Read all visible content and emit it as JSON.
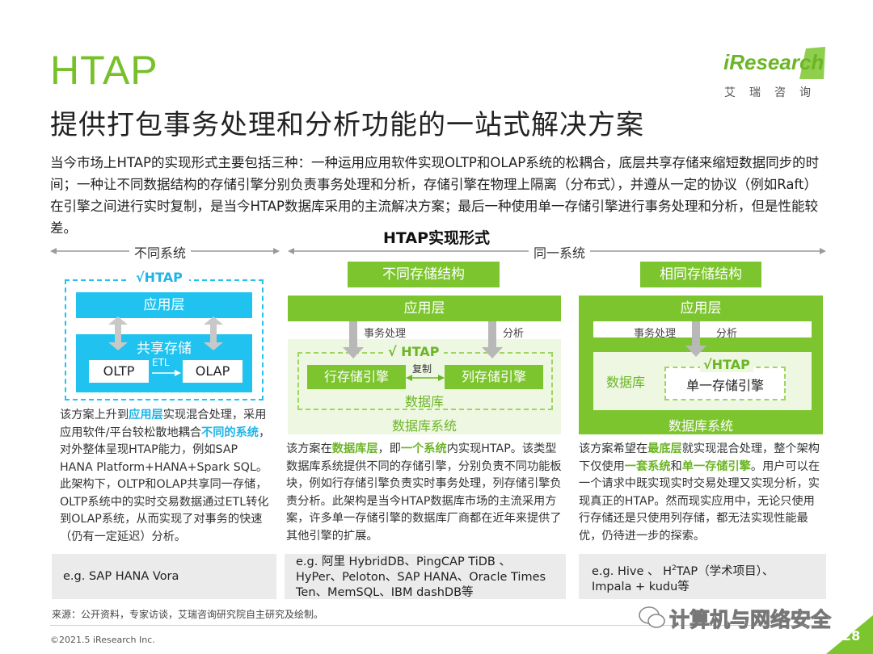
{
  "header": {
    "title": "HTAP",
    "subtitle": "提供打包事务处理和分析功能的一站式解决方案",
    "logo_text": "iResearch",
    "logo_cn": "艾瑞咨询"
  },
  "intro": "当今市场上HTAP的实现形式主要包括三种：一种运用应用软件实现OLTP和OLAP系统的松耦合，底层共享存储来缩短数据同步的时间；一种让不同数据结构的存储引擎分别负责事务处理和分析，存储引擎在物理上隔离（分布式），并遵从一定的协议（例如Raft）在引擎之间进行实时复制，是当今HTAP数据库采用的主流解决方案；最后一种使用单一存储引擎进行事务处理和分析，但是性能较差。",
  "diagram": {
    "title": "HTAP实现形式",
    "different_system": "不同系统",
    "same_system": "同一系统",
    "col1": {
      "htap": "√HTAP",
      "app_layer": "应用层",
      "shared_storage": "共享存储",
      "oltp": "OLTP",
      "etl": "ETL",
      "olap": "OLAP"
    },
    "col2": {
      "tag": "不同存储结构",
      "app_layer": "应用层",
      "txn": "事务处理",
      "analysis": "分析",
      "htap": "√ HTAP",
      "row_engine": "行存储引擎",
      "replicate": "复制",
      "col_engine": "列存储引擎",
      "db": "数据库",
      "db_system": "数据库系统"
    },
    "col3": {
      "tag": "相同存储结构",
      "app_layer": "应用层",
      "txn": "事务处理",
      "analysis": "分析",
      "htap": "√HTAP",
      "db": "数据库",
      "engine": "单一存储引擎",
      "db_system": "数据库系统"
    }
  },
  "desc1": {
    "p1": "该方案上升到",
    "h1": "应用层",
    "p2": "实现混合处理，采用应用软件/平台较松散地耦合",
    "h2": "不同的系统",
    "p3": "，对外整体呈现HTAP能力，例如SAP HANA Platform+HANA+Spark SQL。此架构下，OLTP和OLAP共享同一存储，OLTP系统中的实时交易数据通过ETL转化到OLAP系统，从而实现了对事务的快速（仍有一定延迟）分析。"
  },
  "desc2": {
    "p1": "该方案在",
    "h1": "数据库层",
    "p2": "，即",
    "h2": "一个系统",
    "p3": "内实现HTAP。该类型数据库系统提供不同的存储引擎，分别负责不同功能板块，例如行存储引擎负责实时事务处理，列存储引擎负责分析。此架构是当今HTAP数据库市场的主流采用方案，许多单一存储引擎的数据库厂商都在近年来提供了其他引擎的扩展。"
  },
  "desc3": {
    "p1": "该方案希望在",
    "h1": "最底层",
    "p2": "就实现混合处理，整个架构下仅使用",
    "h2": "一套系统",
    "p3": "和",
    "h3": "单一存储引擎",
    "p4": "。用户可以在一个请求中既实现实时交易处理又实现分析，实现真正的HTAP。然而现实应用中，无论只使用行存储还是只使用列存储，都无法实现性能最优，仍待进一步的探索。"
  },
  "examples": {
    "e1": "e.g. SAP HANA Vora",
    "e2": "e.g. 阿里 HybridDB、PingCAP TiDB 、HyPer、Peloton、SAP HANA、Oracle Times Ten、MemSQL、IBM dashDB等",
    "e3a": "e.g.  Hive 、 H",
    "e3sup": "2",
    "e3b": "TAP（学术项目）、Impala + kudu等"
  },
  "footer": {
    "source": "来源：公开资料，专家访谈，艾瑞咨询研究院自主研究及绘制。",
    "copyright": "©2021.5 iResearch Inc.",
    "watermark": "计算机与网络安全",
    "page": "28"
  },
  "colors": {
    "green": "#7cc52e",
    "cyan": "#20c2ef",
    "pale_green": "#f2f9e8",
    "pale_cyan": "#e6f7fd"
  }
}
